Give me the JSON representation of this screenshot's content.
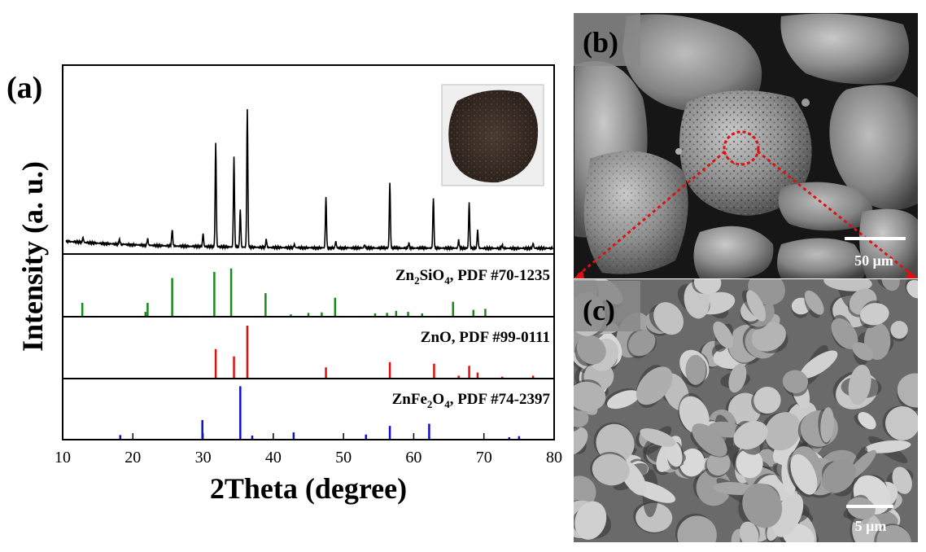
{
  "panel_a": {
    "label": "(a)",
    "ylabel": "Intensity (a. u.)",
    "xlabel": "2Theta (degree)",
    "x_ticks": [
      "10",
      "20",
      "30",
      "40",
      "50",
      "60",
      "70",
      "80"
    ],
    "inset_description": "photo of dark sample pellet"
  },
  "panel_b": {
    "label": "(b)",
    "scale_bar": "50 μm"
  },
  "panel_c": {
    "label": "(c)",
    "scale_bar": "5 μm"
  },
  "colors": {
    "measured": "#000000",
    "zn2sio4": "#1a8a1a",
    "zno": "#dd1111",
    "znfe2o4": "#1010cc",
    "zoom_markers": "#dd1111"
  },
  "chart_data": [
    {
      "type": "line",
      "name": "measured-pattern",
      "xlim": [
        10,
        80
      ],
      "peaks": [
        [
          12.9,
          0.03
        ],
        [
          18.1,
          0.03
        ],
        [
          22.1,
          0.04
        ],
        [
          25.6,
          0.1
        ],
        [
          30.0,
          0.08
        ],
        [
          31.8,
          0.64
        ],
        [
          34.4,
          0.55
        ],
        [
          35.3,
          0.23
        ],
        [
          36.3,
          0.85
        ],
        [
          39.0,
          0.05
        ],
        [
          43.0,
          0.02
        ],
        [
          47.5,
          0.31
        ],
        [
          48.9,
          0.04
        ],
        [
          53.0,
          0.02
        ],
        [
          56.6,
          0.4
        ],
        [
          59.3,
          0.03
        ],
        [
          62.8,
          0.31
        ],
        [
          66.4,
          0.05
        ],
        [
          67.9,
          0.28
        ],
        [
          69.1,
          0.11
        ],
        [
          72.6,
          0.02
        ],
        [
          77.0,
          0.03
        ]
      ]
    },
    {
      "type": "bar",
      "name": "Zn2SiO4",
      "label": "Zn2SiO4, PDF #70-1235",
      "xlim": [
        10,
        80
      ],
      "ylim": [
        0,
        1
      ],
      "x": [
        12.8,
        21.8,
        22.1,
        25.6,
        31.6,
        34.0,
        38.9,
        42.5,
        45.0,
        46.9,
        48.8,
        54.5,
        56.2,
        57.5,
        59.2,
        61.2,
        65.6,
        68.5,
        70.2
      ],
      "y": [
        0.26,
        0.08,
        0.26,
        0.75,
        0.87,
        0.94,
        0.45,
        0.03,
        0.06,
        0.07,
        0.36,
        0.05,
        0.06,
        0.1,
        0.08,
        0.05,
        0.28,
        0.12,
        0.14
      ]
    },
    {
      "type": "bar",
      "name": "ZnO",
      "label": "ZnO, PDF #99-0111",
      "xlim": [
        10,
        80
      ],
      "ylim": [
        0,
        1
      ],
      "x": [
        31.8,
        34.4,
        36.3,
        47.5,
        56.6,
        62.9,
        66.4,
        67.9,
        69.1,
        72.6,
        77.0
      ],
      "y": [
        0.55,
        0.41,
        1.0,
        0.2,
        0.3,
        0.27,
        0.04,
        0.23,
        0.1,
        0.02,
        0.04
      ]
    },
    {
      "type": "bar",
      "name": "ZnFe2O4",
      "label": "ZnFe2O4, PDF #74-2397",
      "xlim": [
        10,
        80
      ],
      "ylim": [
        0,
        1
      ],
      "x": [
        18.2,
        29.9,
        35.3,
        37.0,
        42.9,
        53.2,
        56.6,
        62.2,
        73.6,
        75.0
      ],
      "y": [
        0.07,
        0.35,
        0.98,
        0.06,
        0.12,
        0.08,
        0.24,
        0.28,
        0.03,
        0.05
      ]
    }
  ]
}
